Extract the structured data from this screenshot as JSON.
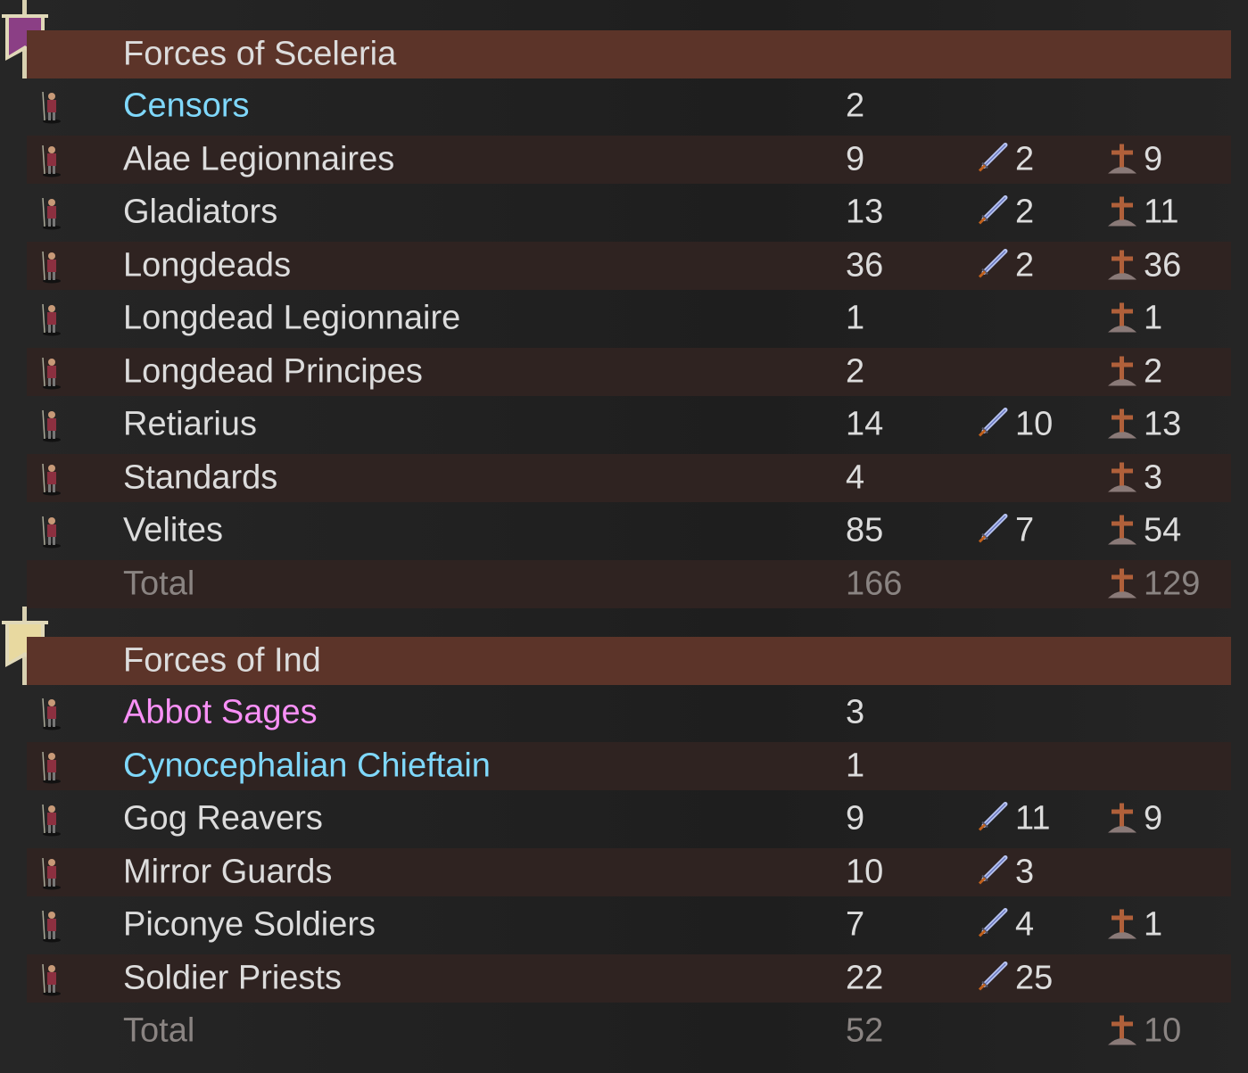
{
  "colors": {
    "commander_blue": "#7fd8fb",
    "priest_pink": "#f890f6",
    "header_band": "#5c3429",
    "row_band": "#2f2321"
  },
  "groups": [
    {
      "title": "Forces of Sceleria",
      "banner_color": "#8b3f85",
      "banner_icon": "purple-eagle-banner-icon",
      "rows": [
        {
          "name": "Censors",
          "count": "2",
          "kills": "",
          "deaths": "",
          "color": "#7fd8fb"
        },
        {
          "name": "Alae Legionnaires",
          "count": "9",
          "kills": "2",
          "deaths": "9"
        },
        {
          "name": "Gladiators",
          "count": "13",
          "kills": "2",
          "deaths": "11"
        },
        {
          "name": "Longdeads",
          "count": "36",
          "kills": "2",
          "deaths": "36"
        },
        {
          "name": "Longdead Legionnaire",
          "count": "1",
          "kills": "",
          "deaths": "1"
        },
        {
          "name": "Longdead Principes",
          "count": "2",
          "kills": "",
          "deaths": "2"
        },
        {
          "name": "Retiarius",
          "count": "14",
          "kills": "10",
          "deaths": "13"
        },
        {
          "name": "Standards",
          "count": "4",
          "kills": "",
          "deaths": "3"
        },
        {
          "name": "Velites",
          "count": "85",
          "kills": "7",
          "deaths": "54"
        }
      ],
      "total": {
        "label": "Total",
        "count": "166",
        "deaths": "129"
      }
    },
    {
      "title": "Forces of Ind",
      "banner_color": "#e8d9a0",
      "banner_icon": "yellow-crozier-banner-icon",
      "rows": [
        {
          "name": "Abbot Sages",
          "count": "3",
          "kills": "",
          "deaths": "",
          "color": "#f890f6"
        },
        {
          "name": "Cynocephalian Chieftain",
          "count": "1",
          "kills": "",
          "deaths": "",
          "color": "#7fd8fb"
        },
        {
          "name": "Gog Reavers",
          "count": "9",
          "kills": "11",
          "deaths": "9"
        },
        {
          "name": "Mirror Guards",
          "count": "10",
          "kills": "3",
          "deaths": ""
        },
        {
          "name": "Piconye Soldiers",
          "count": "7",
          "kills": "4",
          "deaths": "1"
        },
        {
          "name": "Soldier Priests",
          "count": "22",
          "kills": "25",
          "deaths": ""
        }
      ],
      "total": {
        "label": "Total",
        "count": "52",
        "deaths": "10"
      }
    }
  ]
}
